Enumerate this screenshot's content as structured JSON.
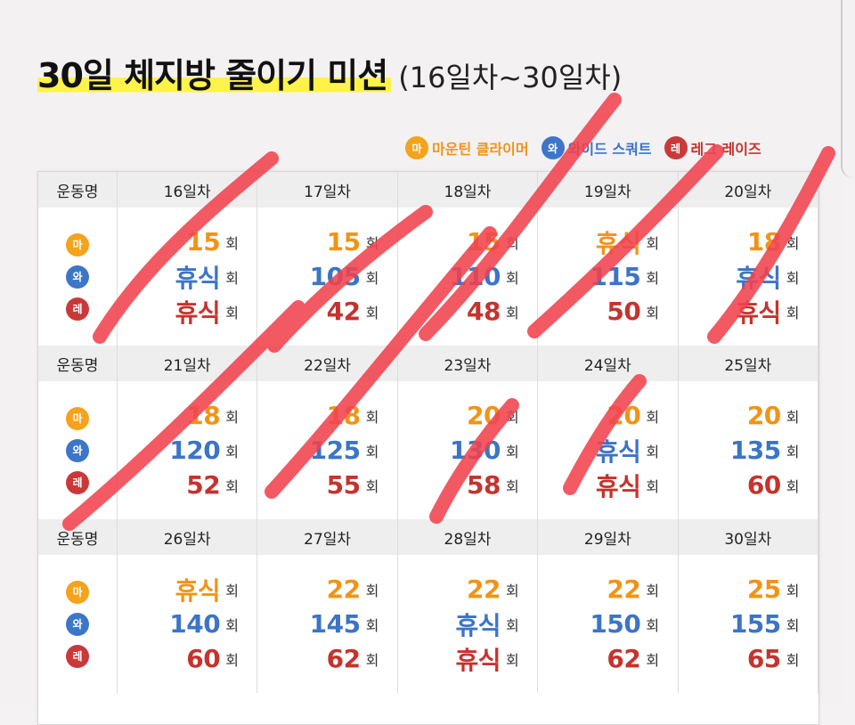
{
  "title": {
    "main": "30일 체지방 줄이기 미션",
    "sub": "(16일차~30일차)"
  },
  "legend": [
    {
      "badge": "마",
      "label": "마운틴 클라이머",
      "color": "#f5a21c"
    },
    {
      "badge": "와",
      "label": "와이드 스쿼트",
      "color": "#3d76c8"
    },
    {
      "badge": "레",
      "label": "레그 레이즈",
      "color": "#c9393a"
    }
  ],
  "table": {
    "exercise_header": "운동명",
    "unit": "회",
    "badges": [
      "마",
      "와",
      "레"
    ],
    "weeks": [
      {
        "days": [
          {
            "day": "16일차",
            "values": [
              "15",
              "휴식",
              "휴식"
            ]
          },
          {
            "day": "17일차",
            "values": [
              "15",
              "105",
              "42"
            ]
          },
          {
            "day": "18일차",
            "values": [
              "15",
              "110",
              "48"
            ]
          },
          {
            "day": "19일차",
            "values": [
              "휴식",
              "115",
              "50"
            ]
          },
          {
            "day": "20일차",
            "values": [
              "18",
              "휴식",
              "휴식"
            ]
          }
        ]
      },
      {
        "days": [
          {
            "day": "21일차",
            "values": [
              "18",
              "120",
              "52"
            ]
          },
          {
            "day": "22일차",
            "values": [
              "18",
              "125",
              "55"
            ]
          },
          {
            "day": "23일차",
            "values": [
              "20",
              "130",
              "58"
            ]
          },
          {
            "day": "24일차",
            "values": [
              "20",
              "휴식",
              "휴식"
            ]
          },
          {
            "day": "25일차",
            "values": [
              "20",
              "135",
              "60"
            ]
          }
        ]
      },
      {
        "days": [
          {
            "day": "26일차",
            "values": [
              "휴식",
              "140",
              "60"
            ]
          },
          {
            "day": "27일차",
            "values": [
              "22",
              "145",
              "62"
            ]
          },
          {
            "day": "28일차",
            "values": [
              "22",
              "휴식",
              "휴식"
            ]
          },
          {
            "day": "29일차",
            "values": [
              "22",
              "150",
              "62"
            ]
          },
          {
            "day": "30일차",
            "values": [
              "25",
              "155",
              "65"
            ]
          }
        ]
      }
    ]
  },
  "colors": {
    "mountain": "#f09416",
    "wide": "#3c74c6",
    "leg": "#c5332e",
    "highlight": "#fff34a",
    "marker": "#f2434e"
  }
}
